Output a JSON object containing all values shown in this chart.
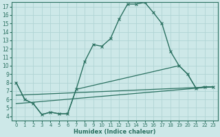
{
  "xlabel": "Humidex (Indice chaleur)",
  "bg_color": "#cde8e8",
  "grid_color": "#b0d4d4",
  "line_color": "#2a7060",
  "xlim": [
    -0.5,
    23.5
  ],
  "ylim": [
    3.5,
    17.5
  ],
  "xticks": [
    0,
    1,
    2,
    3,
    4,
    5,
    6,
    7,
    8,
    9,
    10,
    11,
    12,
    13,
    14,
    15,
    16,
    17,
    18,
    19,
    20,
    21,
    22,
    23
  ],
  "yticks": [
    4,
    5,
    6,
    7,
    8,
    9,
    10,
    11,
    12,
    13,
    14,
    15,
    16,
    17
  ],
  "lines": [
    {
      "x": [
        0,
        1,
        2,
        3,
        4,
        5,
        6,
        7,
        8,
        9,
        10,
        11,
        12,
        13,
        14,
        15,
        16,
        17,
        18,
        19,
        20,
        21,
        22,
        23
      ],
      "y": [
        8,
        6,
        5.5,
        4.2,
        4.5,
        4.3,
        4.3,
        7.2,
        10.5,
        12.5,
        12.3,
        13.2,
        15.5,
        17.3,
        17.3,
        17.5,
        16.3,
        15.0,
        11.7,
        10.0,
        9.0,
        7.3,
        7.5,
        7.5
      ],
      "marker": "x",
      "linewidth": 1.0,
      "markersize": 3.0
    },
    {
      "x": [
        0,
        1,
        2,
        3,
        4,
        5,
        6,
        7,
        19,
        20,
        21,
        22,
        23
      ],
      "y": [
        8,
        6,
        5.5,
        4.2,
        4.5,
        4.3,
        4.3,
        7.2,
        10.0,
        9.0,
        7.3,
        7.5,
        7.5
      ],
      "marker": null,
      "linewidth": 0.9,
      "markersize": 0
    },
    {
      "x": [
        0,
        23
      ],
      "y": [
        5.5,
        7.5
      ],
      "marker": null,
      "linewidth": 0.9,
      "markersize": 0
    },
    {
      "x": [
        0,
        23
      ],
      "y": [
        6.5,
        7.5
      ],
      "marker": null,
      "linewidth": 0.9,
      "markersize": 0
    }
  ]
}
